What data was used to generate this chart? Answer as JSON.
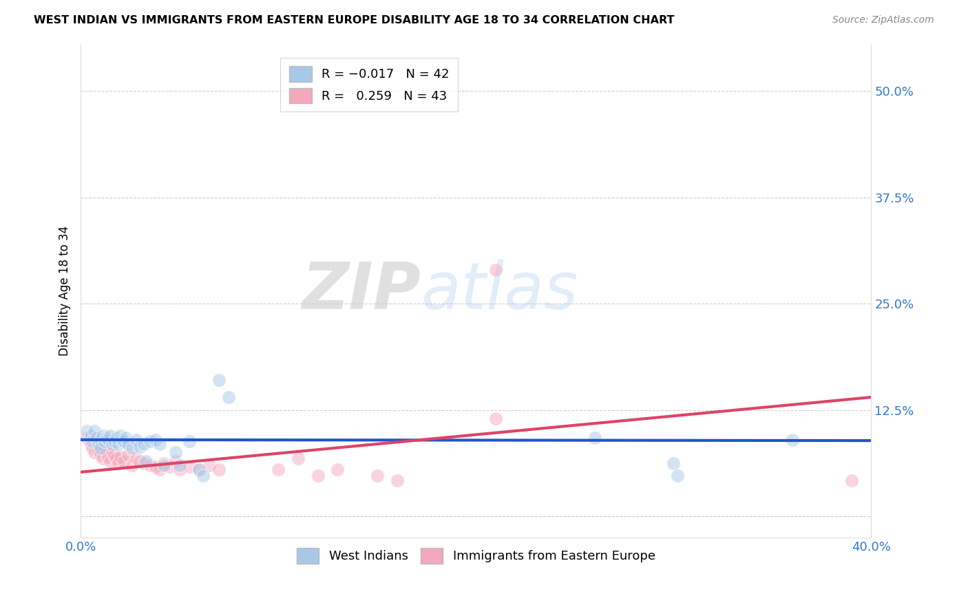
{
  "title": "WEST INDIAN VS IMMIGRANTS FROM EASTERN EUROPE DISABILITY AGE 18 TO 34 CORRELATION CHART",
  "source": "Source: ZipAtlas.com",
  "ylabel": "Disability Age 18 to 34",
  "xlim": [
    0.0,
    0.4
  ],
  "ylim": [
    -0.025,
    0.555
  ],
  "yticks": [
    0.0,
    0.125,
    0.25,
    0.375,
    0.5
  ],
  "ytick_labels": [
    "",
    "12.5%",
    "25.0%",
    "37.5%",
    "50.0%"
  ],
  "xticks": [
    0.0,
    0.08,
    0.16,
    0.24,
    0.32,
    0.4
  ],
  "xtick_labels": [
    "0.0%",
    "",
    "",
    "",
    "",
    "40.0%"
  ],
  "watermark_zip": "ZIP",
  "watermark_atlas": "atlas",
  "blue_color": "#a8c8e8",
  "pink_color": "#f4a8bc",
  "blue_line_color": "#2255cc",
  "pink_line_color": "#dd4466",
  "blue_scatter": [
    [
      0.003,
      0.1
    ],
    [
      0.005,
      0.095
    ],
    [
      0.006,
      0.088
    ],
    [
      0.007,
      0.1
    ],
    [
      0.008,
      0.092
    ],
    [
      0.009,
      0.085
    ],
    [
      0.01,
      0.09
    ],
    [
      0.01,
      0.08
    ],
    [
      0.011,
      0.095
    ],
    [
      0.012,
      0.088
    ],
    [
      0.013,
      0.092
    ],
    [
      0.014,
      0.09
    ],
    [
      0.015,
      0.095
    ],
    [
      0.016,
      0.085
    ],
    [
      0.017,
      0.088
    ],
    [
      0.018,
      0.092
    ],
    [
      0.019,
      0.085
    ],
    [
      0.02,
      0.095
    ],
    [
      0.021,
      0.09
    ],
    [
      0.022,
      0.088
    ],
    [
      0.023,
      0.092
    ],
    [
      0.024,
      0.085
    ],
    [
      0.026,
      0.08
    ],
    [
      0.028,
      0.09
    ],
    [
      0.03,
      0.082
    ],
    [
      0.032,
      0.085
    ],
    [
      0.033,
      0.065
    ],
    [
      0.035,
      0.088
    ],
    [
      0.038,
      0.09
    ],
    [
      0.04,
      0.085
    ],
    [
      0.042,
      0.06
    ],
    [
      0.048,
      0.075
    ],
    [
      0.05,
      0.06
    ],
    [
      0.055,
      0.088
    ],
    [
      0.06,
      0.055
    ],
    [
      0.062,
      0.048
    ],
    [
      0.07,
      0.16
    ],
    [
      0.075,
      0.14
    ],
    [
      0.26,
      0.092
    ],
    [
      0.3,
      0.062
    ],
    [
      0.302,
      0.048
    ],
    [
      0.36,
      0.09
    ]
  ],
  "pink_scatter": [
    [
      0.003,
      0.092
    ],
    [
      0.005,
      0.085
    ],
    [
      0.006,
      0.08
    ],
    [
      0.007,
      0.075
    ],
    [
      0.008,
      0.088
    ],
    [
      0.009,
      0.078
    ],
    [
      0.01,
      0.072
    ],
    [
      0.011,
      0.068
    ],
    [
      0.012,
      0.08
    ],
    [
      0.013,
      0.075
    ],
    [
      0.014,
      0.07
    ],
    [
      0.015,
      0.065
    ],
    [
      0.016,
      0.075
    ],
    [
      0.017,
      0.072
    ],
    [
      0.018,
      0.068
    ],
    [
      0.019,
      0.062
    ],
    [
      0.02,
      0.07
    ],
    [
      0.022,
      0.065
    ],
    [
      0.024,
      0.072
    ],
    [
      0.026,
      0.06
    ],
    [
      0.028,
      0.068
    ],
    [
      0.03,
      0.065
    ],
    [
      0.032,
      0.062
    ],
    [
      0.035,
      0.06
    ],
    [
      0.038,
      0.058
    ],
    [
      0.04,
      0.055
    ],
    [
      0.042,
      0.062
    ],
    [
      0.045,
      0.058
    ],
    [
      0.048,
      0.065
    ],
    [
      0.05,
      0.055
    ],
    [
      0.055,
      0.058
    ],
    [
      0.06,
      0.055
    ],
    [
      0.065,
      0.06
    ],
    [
      0.07,
      0.055
    ],
    [
      0.1,
      0.055
    ],
    [
      0.11,
      0.068
    ],
    [
      0.12,
      0.048
    ],
    [
      0.13,
      0.055
    ],
    [
      0.15,
      0.048
    ],
    [
      0.16,
      0.042
    ],
    [
      0.21,
      0.29
    ],
    [
      0.21,
      0.115
    ],
    [
      0.39,
      0.042
    ]
  ],
  "blue_line": [
    [
      0.0,
      0.09
    ],
    [
      0.4,
      0.089
    ]
  ],
  "pink_line": [
    [
      0.0,
      0.052
    ],
    [
      0.4,
      0.14
    ]
  ]
}
